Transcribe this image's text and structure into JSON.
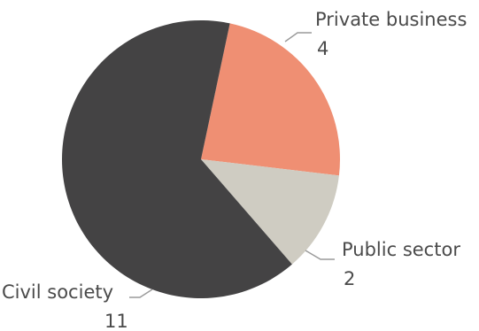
{
  "chart_data": {
    "type": "pie",
    "title": "",
    "slices": [
      {
        "label": "Private business",
        "value": 4,
        "color": "#ef8f73"
      },
      {
        "label": "Public sector",
        "value": 2,
        "color": "#cfccc2"
      },
      {
        "label": "Civil society",
        "value": 11,
        "color": "#444344"
      }
    ],
    "start_angle_deg": 12,
    "direction": "clockwise",
    "data_labels": "outside with leader lines",
    "legend": "none"
  }
}
